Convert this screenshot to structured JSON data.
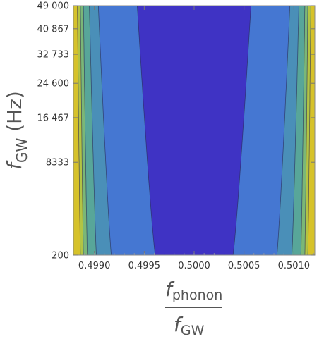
{
  "chart_data": {
    "type": "contour",
    "x_axis": {
      "label_numerator": "f",
      "label_numerator_sub": "phonon",
      "label_denominator": "f",
      "label_denominator_sub": "GW",
      "range": [
        0.49879,
        0.50121
      ],
      "ticks": [
        {
          "value": 0.499,
          "label": "0.4990"
        },
        {
          "value": 0.4995,
          "label": "0.4995"
        },
        {
          "value": 0.5,
          "label": "0.5000"
        },
        {
          "value": 0.5005,
          "label": "0.5005"
        },
        {
          "value": 0.501,
          "label": "0.5010"
        }
      ]
    },
    "y_axis": {
      "label_main": "f",
      "label_sub": "GW",
      "label_unit": " (Hz)",
      "scale": "sqrt",
      "range": [
        200,
        49000
      ],
      "ticks": [
        {
          "value": 200,
          "label": "200"
        },
        {
          "value": 8333,
          "label": "8333"
        },
        {
          "value": 16467,
          "label": "16 467"
        },
        {
          "value": 24600,
          "label": "24 600"
        },
        {
          "value": 32733,
          "label": "32 733"
        },
        {
          "value": 40867,
          "label": "40 867"
        },
        {
          "value": 49000,
          "label": "49 000"
        }
      ]
    },
    "contour_bands": [
      {
        "color": "#3f33c4",
        "x_bottom": [
          0.49961,
          0.50039
        ],
        "x_top": [
          0.49943,
          0.50057
        ]
      },
      {
        "color": "#4577d2",
        "x_bottom": [
          0.49917,
          0.50083
        ],
        "x_top": [
          0.49904,
          0.50096
        ]
      },
      {
        "color": "#4a8fb8",
        "x_bottom": [
          0.49902,
          0.50098
        ],
        "x_top": [
          0.49895,
          0.50105
        ]
      },
      {
        "color": "#58a699",
        "x_bottom": [
          0.49893,
          0.50107
        ],
        "x_top": [
          0.49889,
          0.50111
        ]
      },
      {
        "color": "#7bb777",
        "x_bottom": [
          0.49889,
          0.50111
        ],
        "x_top": [
          0.49886,
          0.50114
        ]
      },
      {
        "color": "#b3c443",
        "x_bottom": [
          0.49886,
          0.50114
        ],
        "x_top": [
          0.49883,
          0.50117
        ]
      }
    ],
    "outer_color": "#d6c22a",
    "grid": false
  }
}
